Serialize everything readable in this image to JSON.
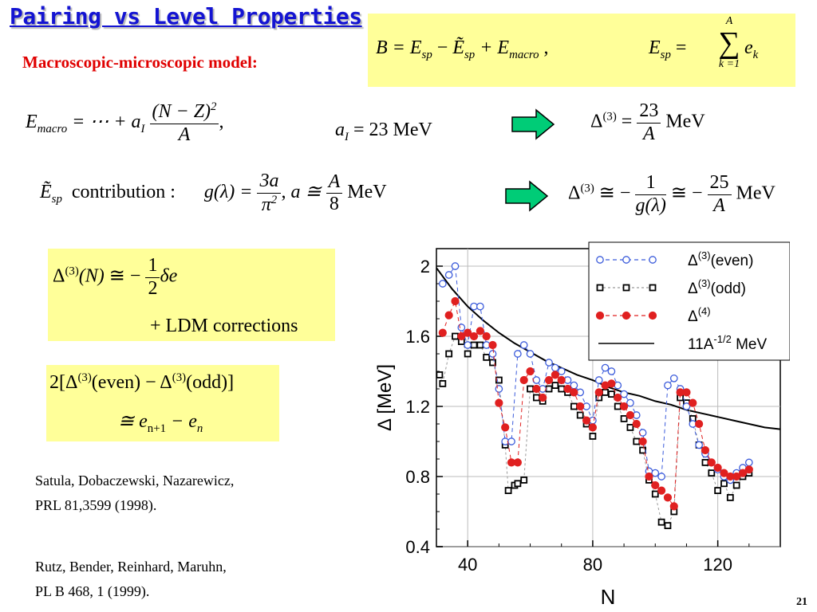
{
  "slide": {
    "title": "Pairing vs Level Properties",
    "subtitle": "Macroscopic-microscopic model:",
    "page_number": "21"
  },
  "equations": {
    "binding": {
      "B": "B",
      "eq1": " = E",
      "sub_sp1": "sp",
      "minus": " − ",
      "Et": "Ẽ",
      "sub_sp2": "sp",
      "plus": " + E",
      "sub_macro": "macro",
      "comma": " ,",
      "Esp_E": "E",
      "Esp_sub": "sp",
      "eq2": " = ",
      "sum_top": "A",
      "sum_sym": "∑",
      "sum_bottom": "k =1",
      "ek": "e",
      "ek_sub": "k"
    },
    "macro": {
      "E": "E",
      "sub": "macro",
      "mid": " = ⋯ + a",
      "sub_I": "I",
      "num": "(N − Z)",
      "num_sup": "2",
      "den": "A",
      "comma": ",",
      "aI": "a",
      "aI_sub": "I",
      "aI_val": " = 23 MeV"
    },
    "delta3_a": {
      "lhs": "Δ",
      "lhs_sup": "(3)",
      "eq": " = ",
      "num": "23",
      "den": "A",
      "unit": " MeV"
    },
    "contribution": {
      "Et": "Ẽ",
      "sub": "sp",
      "text": "contribution :",
      "g": "g(λ) = ",
      "num": "3a",
      "den": "π",
      "den_sup": "2",
      "comma": ",  ",
      "a": "a ≅ ",
      "num2": "A",
      "den2": "8",
      "unit": " MeV"
    },
    "delta3_b": {
      "lhs": "Δ",
      "lhs_sup": "(3)",
      "eq": " ≅ −",
      "num1": "1",
      "den1": "g(λ)",
      "eq2": " ≅ −",
      "num2": "25",
      "den2": "A",
      "unit": " MeV"
    },
    "box1": {
      "lhs": "Δ",
      "lhs_sup": "(3)",
      "arg": "(N)",
      "eq": " ≅ −",
      "num": "1",
      "den": "2",
      "de": "δe",
      "line2": "+ LDM corrections"
    },
    "box2": {
      "line1_a": "2[Δ",
      "sup1": "(3)",
      "line1_b": "(even) − Δ",
      "sup2": "(3)",
      "line1_c": "(odd)]",
      "line2_a": "≅ e",
      "sub1": "n+1",
      "line2_b": " − e",
      "sub2": "n"
    }
  },
  "references": [
    {
      "line1": "Satula, Dobaczewski,  Nazarewicz,",
      "line2": "PRL 81,3599 (1998)."
    },
    {
      "line1": "Rutz, Bender, Reinhard, Maruhn,",
      "line2": "PL B 468, 1 (1999)."
    }
  ],
  "colors": {
    "title": "#1414d2",
    "subtitle": "#e00000",
    "box_fill": "#ffff99",
    "arrow_fill": "#00cc77",
    "even": "#3b5bdb",
    "odd": "#000000",
    "d4": "#e02020"
  },
  "chart_data": {
    "type": "scatter",
    "xlabel": "N",
    "ylabel": "Δ  [MeV]",
    "xlim": [
      30,
      140
    ],
    "ylim": [
      0.4,
      2.1
    ],
    "xticks": [
      "40",
      "80",
      "120"
    ],
    "yticks": [
      "0.4",
      "0.8",
      "1.2",
      "1.6",
      "2"
    ],
    "legend_position": "top-right",
    "series": [
      {
        "name": "Δ(3)(even)",
        "legend": {
          "base": "Δ",
          "sup": "(3)",
          "rest": "(even)"
        },
        "style": "open-circle-dashed",
        "points": [
          [
            32,
            1.9
          ],
          [
            34,
            1.95
          ],
          [
            36,
            2.0
          ],
          [
            38,
            1.65
          ],
          [
            40,
            1.55
          ],
          [
            42,
            1.77
          ],
          [
            44,
            1.77
          ],
          [
            46,
            1.55
          ],
          [
            48,
            1.5
          ],
          [
            50,
            1.3
          ],
          [
            52,
            1.0
          ],
          [
            54,
            1.0
          ],
          [
            56,
            1.5
          ],
          [
            58,
            1.55
          ],
          [
            60,
            1.5
          ],
          [
            62,
            1.35
          ],
          [
            64,
            1.3
          ],
          [
            66,
            1.45
          ],
          [
            68,
            1.42
          ],
          [
            70,
            1.4
          ],
          [
            72,
            1.35
          ],
          [
            74,
            1.32
          ],
          [
            76,
            1.28
          ],
          [
            78,
            1.2
          ],
          [
            80,
            1.12
          ],
          [
            82,
            1.35
          ],
          [
            84,
            1.42
          ],
          [
            86,
            1.4
          ],
          [
            88,
            1.32
          ],
          [
            90,
            1.27
          ],
          [
            92,
            1.22
          ],
          [
            94,
            1.15
          ],
          [
            96,
            1.05
          ],
          [
            98,
            0.83
          ],
          [
            100,
            0.82
          ],
          [
            102,
            0.8
          ],
          [
            104,
            1.32
          ],
          [
            106,
            1.36
          ],
          [
            108,
            1.3
          ],
          [
            110,
            1.2
          ],
          [
            112,
            1.1
          ],
          [
            114,
            0.98
          ],
          [
            116,
            0.93
          ],
          [
            118,
            0.88
          ],
          [
            120,
            0.84
          ],
          [
            122,
            0.8
          ],
          [
            124,
            0.78
          ],
          [
            126,
            0.82
          ],
          [
            128,
            0.85
          ],
          [
            130,
            0.88
          ]
        ]
      },
      {
        "name": "Δ(3)(odd)",
        "legend": {
          "base": "Δ",
          "sup": "(3)",
          "rest": "(odd)"
        },
        "style": "open-square-dashed",
        "points": [
          [
            31,
            1.38
          ],
          [
            32,
            1.33
          ],
          [
            34,
            1.5
          ],
          [
            36,
            1.6
          ],
          [
            38,
            1.57
          ],
          [
            40,
            1.5
          ],
          [
            42,
            1.55
          ],
          [
            44,
            1.55
          ],
          [
            46,
            1.48
          ],
          [
            48,
            1.45
          ],
          [
            50,
            1.35
          ],
          [
            52,
            0.98
          ],
          [
            53,
            0.72
          ],
          [
            55,
            0.75
          ],
          [
            56,
            0.76
          ],
          [
            58,
            0.78
          ],
          [
            60,
            1.3
          ],
          [
            62,
            1.25
          ],
          [
            64,
            1.23
          ],
          [
            66,
            1.3
          ],
          [
            68,
            1.32
          ],
          [
            70,
            1.3
          ],
          [
            72,
            1.28
          ],
          [
            74,
            1.2
          ],
          [
            76,
            1.15
          ],
          [
            78,
            1.1
          ],
          [
            80,
            1.03
          ],
          [
            82,
            1.25
          ],
          [
            84,
            1.28
          ],
          [
            86,
            1.27
          ],
          [
            88,
            1.2
          ],
          [
            90,
            1.13
          ],
          [
            92,
            1.08
          ],
          [
            94,
            1.0
          ],
          [
            96,
            0.95
          ],
          [
            98,
            0.78
          ],
          [
            100,
            0.7
          ],
          [
            102,
            0.54
          ],
          [
            104,
            0.52
          ],
          [
            106,
            0.6
          ],
          [
            108,
            1.25
          ],
          [
            110,
            1.22
          ],
          [
            112,
            1.13
          ],
          [
            114,
            0.98
          ],
          [
            116,
            0.88
          ],
          [
            118,
            0.82
          ],
          [
            120,
            0.72
          ],
          [
            122,
            0.76
          ],
          [
            124,
            0.68
          ],
          [
            126,
            0.75
          ],
          [
            128,
            0.8
          ],
          [
            130,
            0.82
          ]
        ]
      },
      {
        "name": "Δ(4)",
        "legend": {
          "base": "Δ",
          "sup": "(4)",
          "rest": ""
        },
        "style": "filled-circle-dashed",
        "points": [
          [
            32,
            1.62
          ],
          [
            34,
            1.72
          ],
          [
            36,
            1.8
          ],
          [
            38,
            1.6
          ],
          [
            40,
            1.62
          ],
          [
            42,
            1.6
          ],
          [
            44,
            1.63
          ],
          [
            46,
            1.6
          ],
          [
            48,
            1.55
          ],
          [
            50,
            1.22
          ],
          [
            52,
            1.08
          ],
          [
            54,
            0.88
          ],
          [
            56,
            0.88
          ],
          [
            58,
            1.35
          ],
          [
            60,
            1.4
          ],
          [
            62,
            1.3
          ],
          [
            64,
            1.25
          ],
          [
            66,
            1.35
          ],
          [
            68,
            1.38
          ],
          [
            70,
            1.35
          ],
          [
            72,
            1.3
          ],
          [
            74,
            1.28
          ],
          [
            76,
            1.2
          ],
          [
            78,
            1.12
          ],
          [
            80,
            1.08
          ],
          [
            82,
            1.28
          ],
          [
            84,
            1.32
          ],
          [
            86,
            1.33
          ],
          [
            88,
            1.25
          ],
          [
            90,
            1.2
          ],
          [
            92,
            1.15
          ],
          [
            94,
            1.1
          ],
          [
            96,
            1.0
          ],
          [
            98,
            0.8
          ],
          [
            100,
            0.75
          ],
          [
            102,
            0.72
          ],
          [
            104,
            0.68
          ],
          [
            106,
            0.63
          ],
          [
            108,
            1.28
          ],
          [
            110,
            1.28
          ],
          [
            112,
            1.22
          ],
          [
            114,
            1.1
          ],
          [
            116,
            0.95
          ],
          [
            118,
            0.88
          ],
          [
            120,
            0.85
          ],
          [
            122,
            0.82
          ],
          [
            124,
            0.8
          ],
          [
            126,
            0.8
          ],
          [
            128,
            0.82
          ],
          [
            130,
            0.84
          ]
        ]
      },
      {
        "name": "11A^-1/2 MeV",
        "legend": {
          "base": "11A",
          "sup": "-1/2",
          "rest": " MeV"
        },
        "style": "solid-line",
        "points": [
          [
            30,
            1.99
          ],
          [
            35,
            1.87
          ],
          [
            40,
            1.77
          ],
          [
            45,
            1.69
          ],
          [
            50,
            1.62
          ],
          [
            55,
            1.56
          ],
          [
            60,
            1.51
          ],
          [
            65,
            1.46
          ],
          [
            70,
            1.42
          ],
          [
            75,
            1.38
          ],
          [
            80,
            1.35
          ],
          [
            85,
            1.31
          ],
          [
            90,
            1.28
          ],
          [
            95,
            1.26
          ],
          [
            100,
            1.23
          ],
          [
            105,
            1.21
          ],
          [
            110,
            1.18
          ],
          [
            115,
            1.16
          ],
          [
            120,
            1.14
          ],
          [
            125,
            1.12
          ],
          [
            130,
            1.1
          ],
          [
            135,
            1.08
          ],
          [
            140,
            1.07
          ]
        ]
      }
    ]
  }
}
